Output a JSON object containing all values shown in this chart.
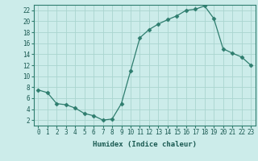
{
  "x": [
    0,
    1,
    2,
    3,
    4,
    5,
    6,
    7,
    8,
    9,
    10,
    11,
    12,
    13,
    14,
    15,
    16,
    17,
    18,
    19,
    20,
    21,
    22,
    23
  ],
  "y": [
    7.5,
    7.0,
    5.0,
    4.8,
    4.2,
    3.2,
    2.8,
    2.0,
    2.2,
    5.0,
    11.0,
    17.0,
    18.5,
    19.5,
    20.3,
    21.0,
    22.0,
    22.2,
    22.8,
    20.5,
    15.0,
    14.2,
    13.5,
    12.0
  ],
  "line_color": "#2e7d6e",
  "marker": "D",
  "marker_size": 2.5,
  "bg_color": "#ccecea",
  "grid_color": "#aad5cf",
  "xlabel": "Humidex (Indice chaleur)",
  "xlim": [
    -0.5,
    23.5
  ],
  "ylim": [
    1,
    23
  ],
  "yticks": [
    2,
    4,
    6,
    8,
    10,
    12,
    14,
    16,
    18,
    20,
    22
  ],
  "xticks": [
    0,
    1,
    2,
    3,
    4,
    5,
    6,
    7,
    8,
    9,
    10,
    11,
    12,
    13,
    14,
    15,
    16,
    17,
    18,
    19,
    20,
    21,
    22,
    23
  ],
  "tick_fontsize": 5.5,
  "xlabel_fontsize": 6.5,
  "label_color": "#1a5a52"
}
